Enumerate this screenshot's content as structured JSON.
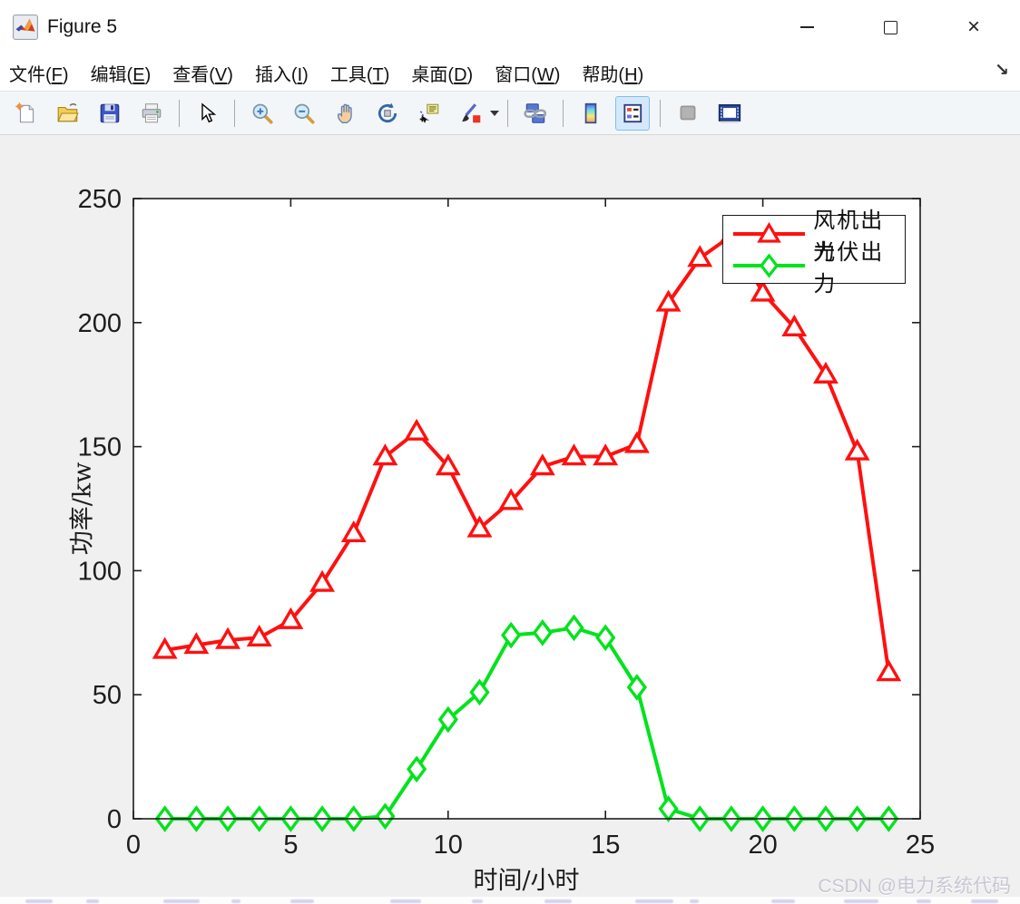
{
  "window": {
    "title": "Figure 5",
    "controls": [
      {
        "name": "minimize",
        "glyph": "–"
      },
      {
        "name": "maximize",
        "glyph": "□"
      },
      {
        "name": "close",
        "glyph": "×"
      }
    ]
  },
  "menu": {
    "items": [
      {
        "pre": "文件(",
        "key": "F",
        "post": ")"
      },
      {
        "pre": "编辑(",
        "key": "E",
        "post": ")"
      },
      {
        "pre": "查看(",
        "key": "V",
        "post": ")"
      },
      {
        "pre": "插入(",
        "key": "I",
        "post": ")"
      },
      {
        "pre": "工具(",
        "key": "T",
        "post": ")"
      },
      {
        "pre": "桌面(",
        "key": "D",
        "post": ")"
      },
      {
        "pre": "窗口(",
        "key": "W",
        "post": ")"
      },
      {
        "pre": "帮助(",
        "key": "H",
        "post": ")"
      }
    ],
    "dock_arrow_glyph": "↘"
  },
  "toolbar": {
    "buttons": [
      "new-figure",
      "open-file",
      "save-figure",
      "print-figure",
      "edit-plot",
      "zoom-in",
      "zoom-out",
      "pan",
      "rotate-3d",
      "data-cursor",
      "brush-data",
      "link-plot",
      "insert-colorbar",
      "insert-legend",
      "hide-plot-tools",
      "show-plot-tools-and-dock"
    ],
    "active_button": "insert-legend"
  },
  "watermark": "CSDN @电力系统代码",
  "chart_data": {
    "type": "line",
    "title": "",
    "xlabel": "时间/小时",
    "ylabel": "功率/kw",
    "xlim": [
      0,
      25
    ],
    "ylim": [
      0,
      250
    ],
    "xticks": [
      0,
      5,
      10,
      15,
      20,
      25
    ],
    "yticks": [
      0,
      50,
      100,
      150,
      200,
      250
    ],
    "grid": false,
    "legend_position": "top-right",
    "x": [
      1,
      2,
      3,
      4,
      5,
      6,
      7,
      8,
      9,
      10,
      11,
      12,
      13,
      14,
      15,
      16,
      17,
      18,
      19,
      20,
      21,
      22,
      23,
      24
    ],
    "series": [
      {
        "name": "风机出力",
        "color": "#ff1010",
        "marker": "triangle",
        "values": [
          68,
          70,
          72,
          73,
          80,
          95,
          115,
          146,
          156,
          142,
          117,
          128,
          142,
          146,
          146,
          151,
          208,
          226,
          235,
          212,
          198,
          179,
          148,
          59
        ]
      },
      {
        "name": "光伏出力",
        "color": "#00e31c",
        "marker": "diamond",
        "values": [
          0,
          0,
          0,
          0,
          0,
          0,
          0,
          1,
          20,
          40,
          51,
          74,
          75,
          77,
          73,
          53,
          4,
          0,
          0,
          0,
          0,
          0,
          0,
          0
        ]
      }
    ]
  }
}
